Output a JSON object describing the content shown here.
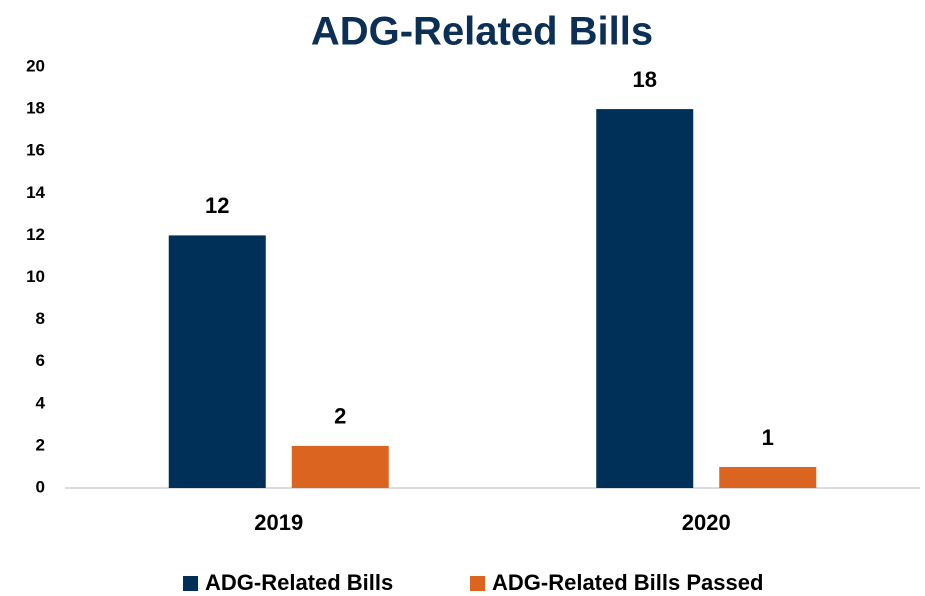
{
  "chart_data": {
    "type": "bar",
    "title": "ADG-Related Bills",
    "categories": [
      "2019",
      "2020"
    ],
    "series": [
      {
        "name": "ADG-Related Bills",
        "color": "#003057",
        "values": [
          12,
          18
        ]
      },
      {
        "name": "ADG-Related Bills Passed",
        "color": "#dc6421",
        "values": [
          2,
          1
        ]
      }
    ],
    "ylim": [
      0,
      20
    ],
    "yticks": [
      0,
      2,
      4,
      6,
      8,
      10,
      12,
      14,
      16,
      18,
      20
    ],
    "grid": false,
    "legend": "bottom"
  }
}
